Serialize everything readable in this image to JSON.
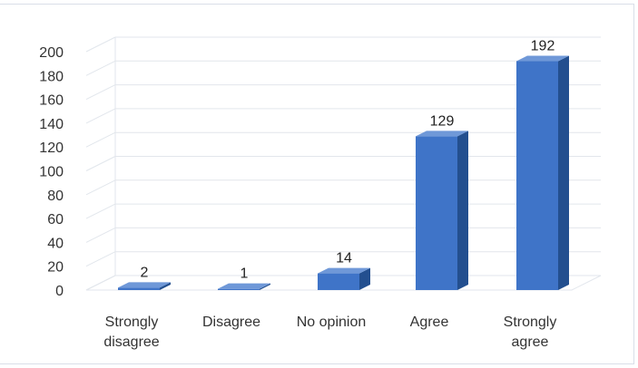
{
  "chart_data": {
    "type": "bar",
    "categories": [
      [
        "Strongly",
        "disagree"
      ],
      [
        "Disagree"
      ],
      [
        "No opinion"
      ],
      [
        "Agree"
      ],
      [
        "Strongly",
        "agree"
      ]
    ],
    "values": [
      2,
      1,
      14,
      129,
      192
    ],
    "data_labels": [
      "2",
      "1",
      "14",
      "129",
      "192"
    ],
    "y_ticks": [
      "0",
      "20",
      "40",
      "60",
      "80",
      "100",
      "120",
      "140",
      "160",
      "180",
      "200"
    ],
    "ylim": [
      0,
      200
    ],
    "title": "",
    "xlabel": "",
    "ylabel": "",
    "grid": true,
    "legend": "none",
    "colors": {
      "bar_front": "#3f74c8",
      "bar_side": "#234f8f",
      "bar_top": "#6f98d8",
      "grid": "#e2e6ec"
    }
  }
}
